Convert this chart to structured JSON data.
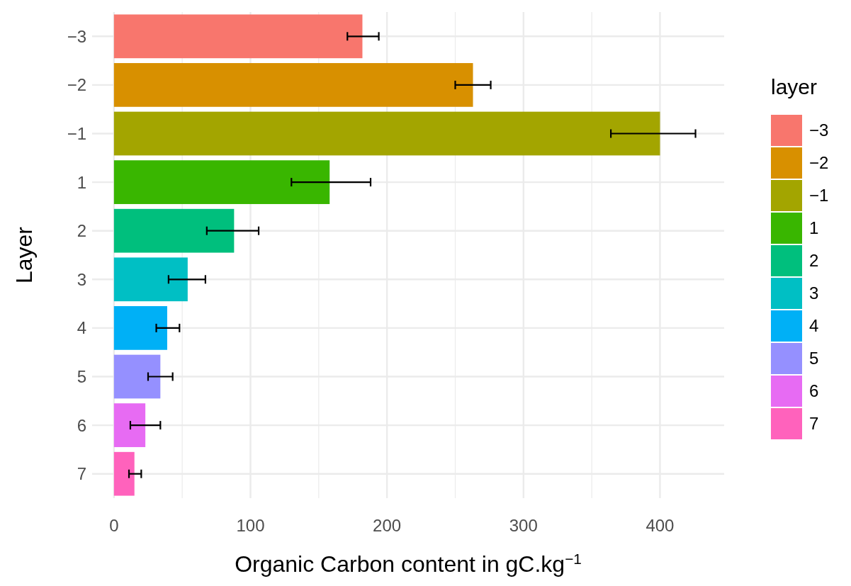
{
  "chart_data": {
    "type": "bar",
    "orientation": "horizontal",
    "xlabel": "Organic Carbon content in gC.kg$^{−1}$",
    "ylabel": "Layer",
    "legend_title": "layer",
    "categories": [
      "−3",
      "−2",
      "−1",
      "1",
      "2",
      "3",
      "4",
      "5",
      "6",
      "7"
    ],
    "series": [
      {
        "name": "−3",
        "color": "#f8766d",
        "values": [
          182,
          null,
          null,
          null,
          null,
          null,
          null,
          null,
          null,
          null
        ],
        "errors": [
          [
            171,
            194
          ],
          null,
          null,
          null,
          null,
          null,
          null,
          null,
          null,
          null
        ]
      },
      {
        "name": "−2",
        "color": "#d89000",
        "values": [
          null,
          263,
          null,
          null,
          null,
          null,
          null,
          null,
          null,
          null
        ],
        "errors": [
          null,
          [
            250,
            276
          ],
          null,
          null,
          null,
          null,
          null,
          null,
          null,
          null
        ]
      },
      {
        "name": "−1",
        "color": "#a3a500",
        "values": [
          null,
          null,
          400,
          null,
          null,
          null,
          null,
          null,
          null,
          null
        ],
        "errors": [
          null,
          null,
          [
            364,
            426
          ],
          null,
          null,
          null,
          null,
          null,
          null,
          null
        ]
      },
      {
        "name": "1",
        "color": "#39b600",
        "values": [
          null,
          null,
          null,
          158,
          null,
          null,
          null,
          null,
          null,
          null
        ],
        "errors": [
          null,
          null,
          null,
          [
            130,
            188
          ],
          null,
          null,
          null,
          null,
          null,
          null
        ]
      },
      {
        "name": "2",
        "color": "#00bf7d",
        "values": [
          null,
          null,
          null,
          null,
          88,
          null,
          null,
          null,
          null,
          null
        ],
        "errors": [
          null,
          null,
          null,
          null,
          [
            68,
            106
          ],
          null,
          null,
          null,
          null,
          null
        ]
      },
      {
        "name": "3",
        "color": "#00bfc4",
        "values": [
          null,
          null,
          null,
          null,
          null,
          54,
          null,
          null,
          null,
          null
        ],
        "errors": [
          null,
          null,
          null,
          null,
          null,
          [
            40,
            67
          ],
          null,
          null,
          null,
          null
        ]
      },
      {
        "name": "4",
        "color": "#00b0f6",
        "values": [
          null,
          null,
          null,
          null,
          null,
          null,
          39,
          null,
          null,
          null
        ],
        "errors": [
          null,
          null,
          null,
          null,
          null,
          null,
          [
            31,
            48
          ],
          null,
          null,
          null
        ]
      },
      {
        "name": "5",
        "color": "#9590ff",
        "values": [
          null,
          null,
          null,
          null,
          null,
          null,
          null,
          34,
          null,
          null
        ],
        "errors": [
          null,
          null,
          null,
          null,
          null,
          null,
          null,
          [
            25,
            43
          ],
          null,
          null
        ]
      },
      {
        "name": "6",
        "color": "#e76bf3",
        "values": [
          null,
          null,
          null,
          null,
          null,
          null,
          null,
          null,
          23,
          null
        ],
        "errors": [
          null,
          null,
          null,
          null,
          null,
          null,
          null,
          null,
          [
            12,
            34
          ],
          null
        ]
      },
      {
        "name": "7",
        "color": "#ff62bc",
        "values": [
          null,
          null,
          null,
          null,
          null,
          null,
          null,
          null,
          null,
          15
        ],
        "errors": [
          null,
          null,
          null,
          null,
          null,
          null,
          null,
          null,
          null,
          [
            11,
            20
          ]
        ]
      }
    ],
    "xlim": [
      -16,
      447
    ],
    "xticks": [
      0,
      {
        "value": 50,
        "label": null
      },
      100,
      {
        "value": 150,
        "label": null
      },
      200,
      {
        "value": 250,
        "label": null
      },
      300,
      {
        "value": 350,
        "label": null
      },
      400
    ],
    "grid": true,
    "legend": "right"
  }
}
